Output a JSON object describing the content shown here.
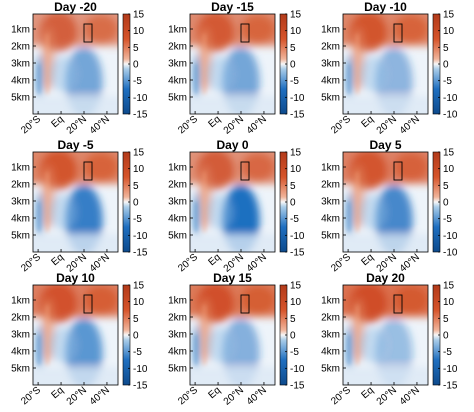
{
  "chart_data": {
    "type": "heatmap",
    "layout": "3x3 grid",
    "xticks": [
      "20°S",
      "Eq",
      "20°N",
      "40°N"
    ],
    "yticks": [
      "1km",
      "2km",
      "3km",
      "4km",
      "5km"
    ],
    "colorbar": {
      "min": -15,
      "max": 15,
      "ticks": [
        "15",
        "10",
        "5",
        "0",
        "-5",
        "-10",
        "-15"
      ],
      "colormap": "diverging blue-white-red",
      "negative_color": "#1f6fc0",
      "positive_color": "#d6542a",
      "zero_color": "#f7f7f7"
    },
    "panels": [
      {
        "title": "Day -20",
        "ybottom_label": "-15",
        "cb_label_clipped": false
      },
      {
        "title": "Day -15",
        "ybottom_label": "-15",
        "cb_label_clipped": false
      },
      {
        "title": "Day -10",
        "ybottom_label": "-10",
        "cb_label_clipped": true
      },
      {
        "title": "Day -5",
        "ybottom_label": "-15",
        "cb_label_clipped": false
      },
      {
        "title": "Day 0",
        "ybottom_label": "-15",
        "cb_label_clipped": false
      },
      {
        "title": "Day 5",
        "ybottom_label": "-10",
        "cb_label_clipped": true
      },
      {
        "title": "Day 10",
        "ybottom_label": "-15",
        "cb_label_clipped": false
      },
      {
        "title": "Day 15",
        "ybottom_label": "-15",
        "cb_label_clipped": false
      },
      {
        "title": "Day 20",
        "ybottom_label": "-15",
        "cb_label_clipped": true
      }
    ],
    "annotation": "rectangle marking region near 40°N, 1–2 km in each panel",
    "grid": false
  }
}
